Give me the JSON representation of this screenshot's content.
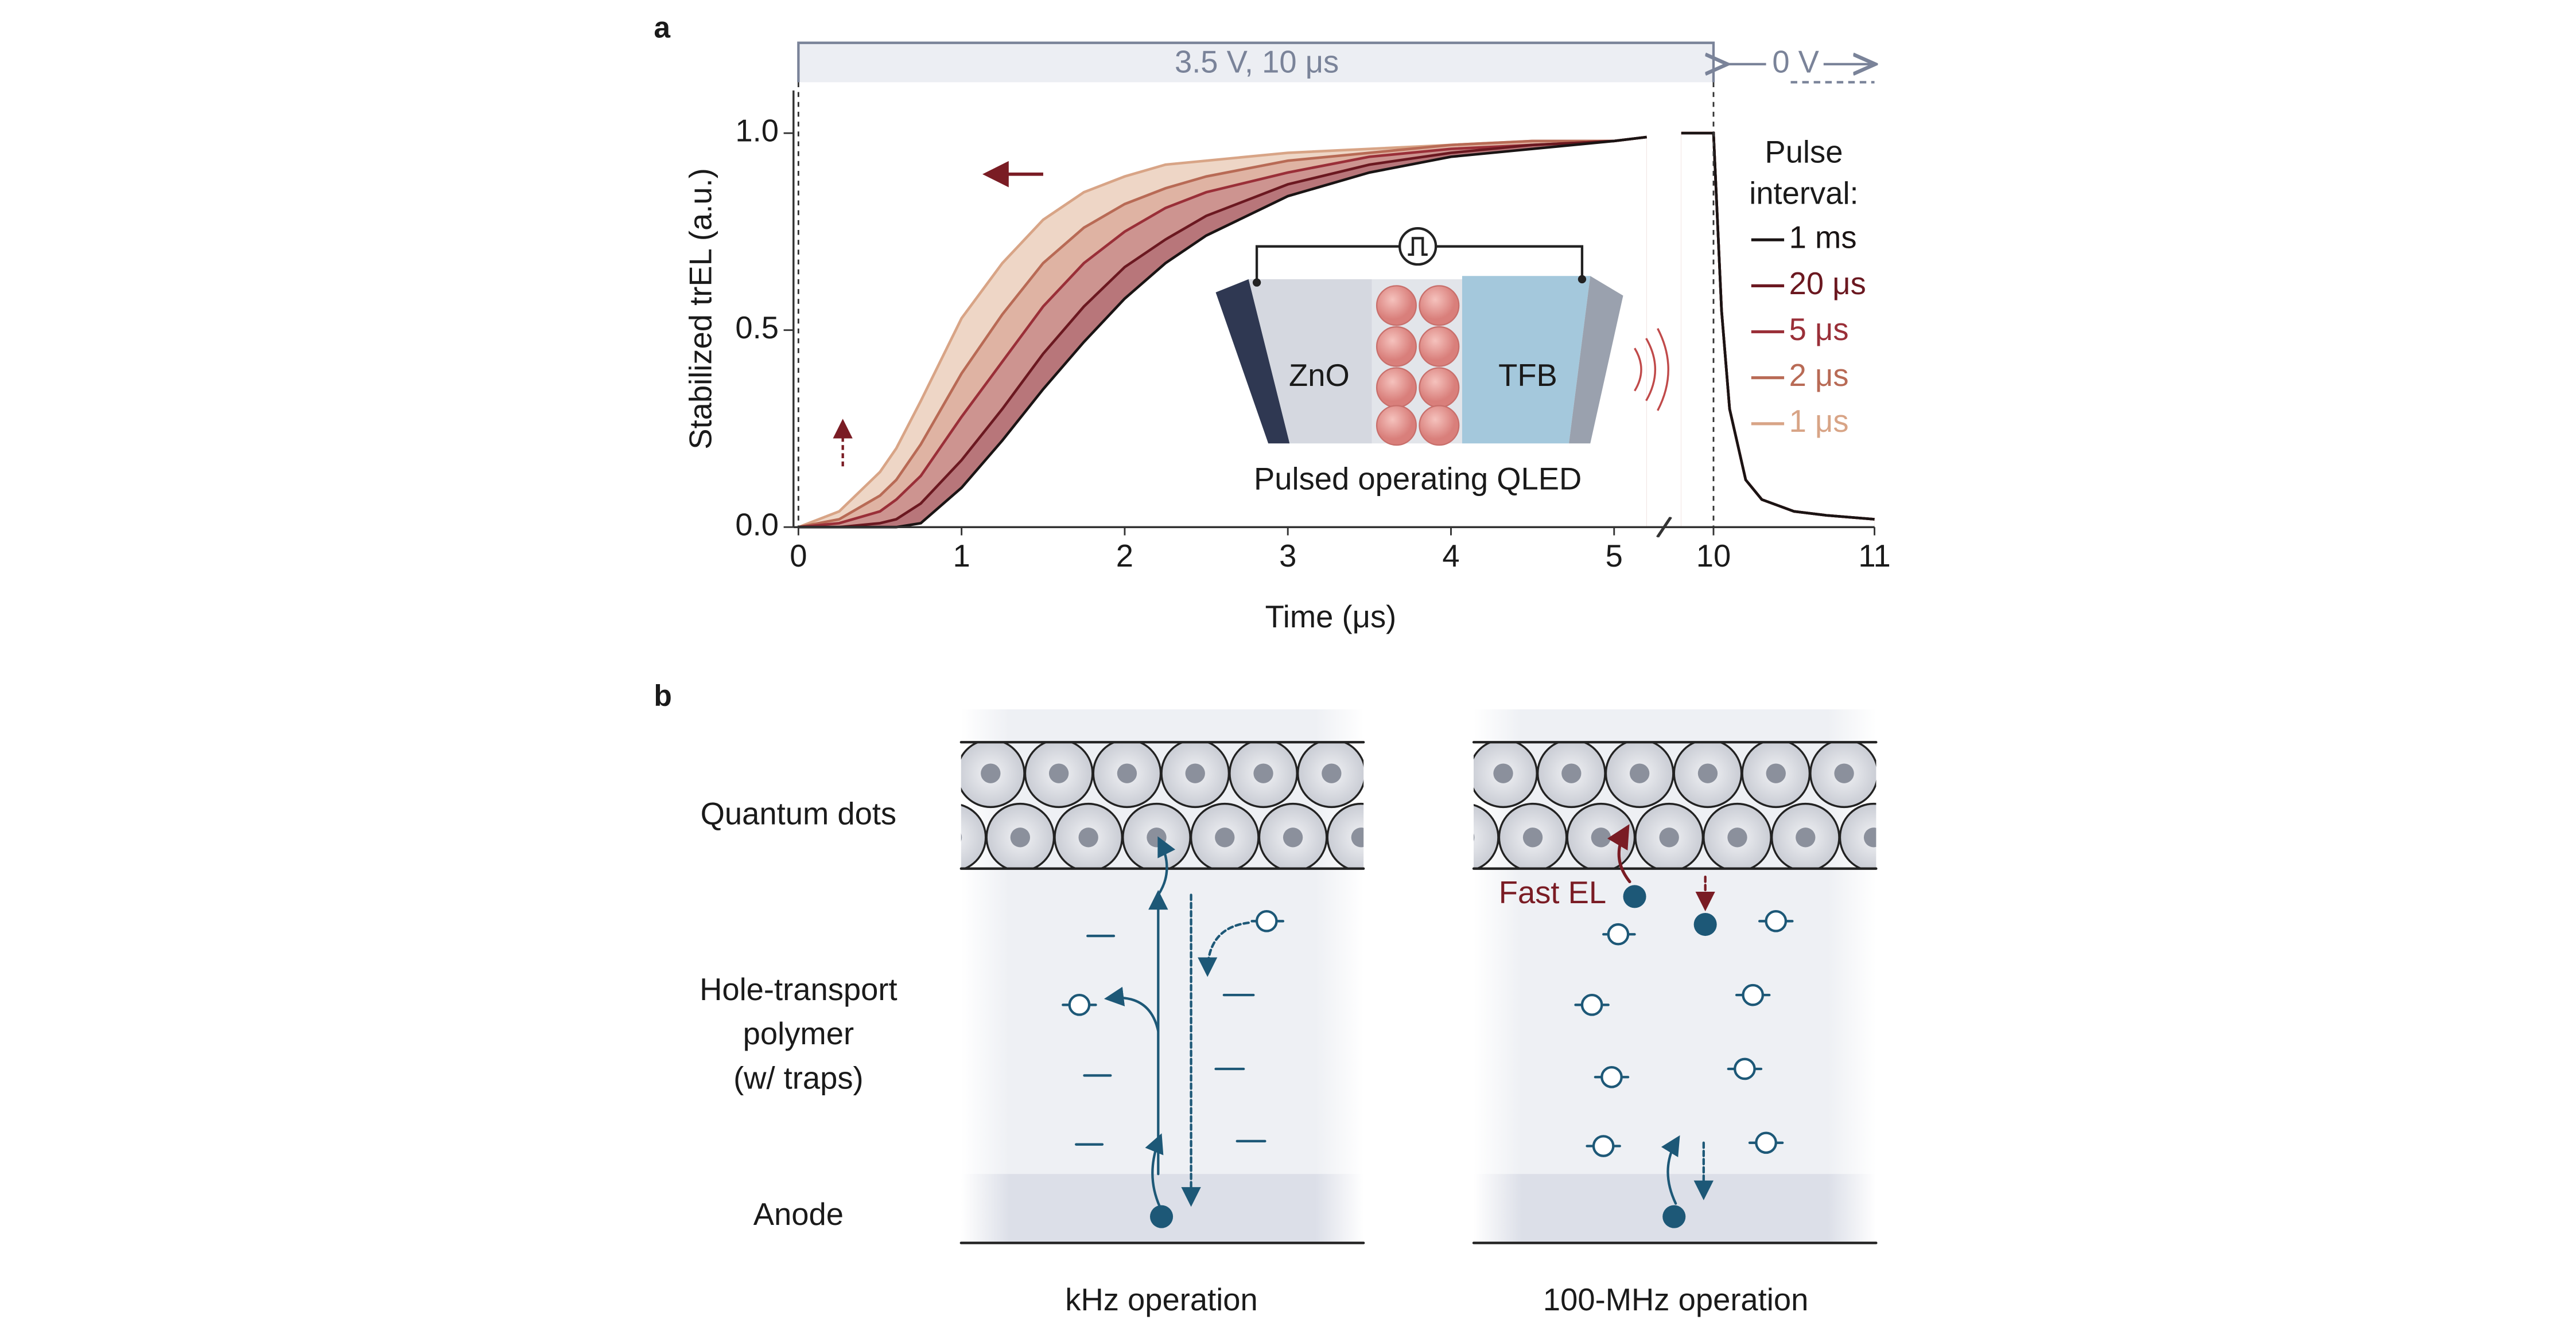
{
  "panel_labels": [
    "a",
    "b"
  ],
  "chart_data": {
    "type": "line",
    "x_label": "Time (μs)",
    "y_label": "Stabilized trEL (a.u.)",
    "pulse_label": "3.5 V, 10 μs",
    "off_label": "0 V",
    "legend_title": [
      "Pulse",
      "interval:"
    ],
    "inset": {
      "left": "ZnO",
      "right": "TFB",
      "caption": "Pulsed operating QLED"
    },
    "xlim": [
      0,
      11
    ],
    "x_break": [
      5.3,
      9.7
    ],
    "xticks": [
      0,
      1,
      2,
      3,
      4,
      5,
      10,
      11
    ],
    "ylim": [
      0,
      1.1
    ],
    "yticks": [
      {
        "value": 0,
        "label": "0.0"
      },
      0.5,
      {
        "value": 1,
        "label": "1.0"
      }
    ],
    "grid": false,
    "x": [
      0,
      0.25,
      0.5,
      0.6,
      0.75,
      1,
      1.25,
      1.5,
      1.75,
      2,
      2.25,
      2.5,
      3,
      3.5,
      4,
      4.5,
      5,
      5.2,
      9.7,
      9.8,
      10,
      10.05,
      10.1,
      10.2,
      10.3,
      10.5,
      10.7,
      11
    ],
    "series": [
      {
        "name": "1 ms",
        "color": "#1a1414",
        "fill": "#ffffff",
        "values": [
          0,
          0,
          0,
          0,
          0.01,
          0.1,
          0.22,
          0.35,
          0.47,
          0.58,
          0.67,
          0.74,
          0.84,
          0.9,
          0.94,
          0.96,
          0.98,
          0.99,
          null,
          1,
          1,
          0.55,
          0.3,
          0.12,
          0.07,
          0.04,
          0.03,
          0.02
        ]
      },
      {
        "name": "20 μs",
        "color": "#6b1820",
        "fill": "#b8767a",
        "values": [
          0,
          0,
          0.01,
          0.02,
          0.06,
          0.17,
          0.3,
          0.44,
          0.56,
          0.66,
          0.73,
          0.79,
          0.87,
          0.92,
          0.95,
          0.97,
          0.98,
          0.99,
          null,
          1,
          1,
          0.55,
          0.3,
          0.12,
          0.07,
          0.04,
          0.03,
          0.02
        ]
      },
      {
        "name": "5 μs",
        "color": "#9a2f38",
        "fill": "#cd9490",
        "values": [
          0,
          0.01,
          0.04,
          0.07,
          0.13,
          0.28,
          0.42,
          0.56,
          0.67,
          0.75,
          0.81,
          0.85,
          0.9,
          0.94,
          0.96,
          0.97,
          0.98,
          0.99,
          null,
          1,
          1,
          0.55,
          0.3,
          0.12,
          0.07,
          0.04,
          0.03,
          0.02
        ]
      },
      {
        "name": "2 μs",
        "color": "#b86a55",
        "fill": "#dfb3a3",
        "values": [
          0,
          0.02,
          0.08,
          0.12,
          0.21,
          0.39,
          0.54,
          0.67,
          0.76,
          0.82,
          0.86,
          0.89,
          0.93,
          0.95,
          0.97,
          0.98,
          0.98,
          0.99,
          null,
          1,
          1,
          0.55,
          0.3,
          0.12,
          0.07,
          0.04,
          0.03,
          0.02
        ]
      },
      {
        "name": "1 μs",
        "color": "#d8a486",
        "fill": "#eed6c6",
        "values": [
          0,
          0.04,
          0.14,
          0.2,
          0.32,
          0.53,
          0.67,
          0.78,
          0.85,
          0.89,
          0.92,
          0.93,
          0.95,
          0.96,
          0.97,
          0.98,
          0.98,
          0.99,
          null,
          1,
          1,
          0.55,
          0.3,
          0.12,
          0.07,
          0.04,
          0.03,
          0.02
        ]
      }
    ]
  },
  "diagram": {
    "layers": {
      "quantum_dots": "Quantum dots",
      "polymer": [
        "Hole-transport",
        "polymer",
        "(w/ traps)"
      ],
      "anode": "Anode"
    },
    "columns": [
      "kHz operation",
      "100-MHz operation"
    ],
    "fast_el": "Fast EL"
  }
}
